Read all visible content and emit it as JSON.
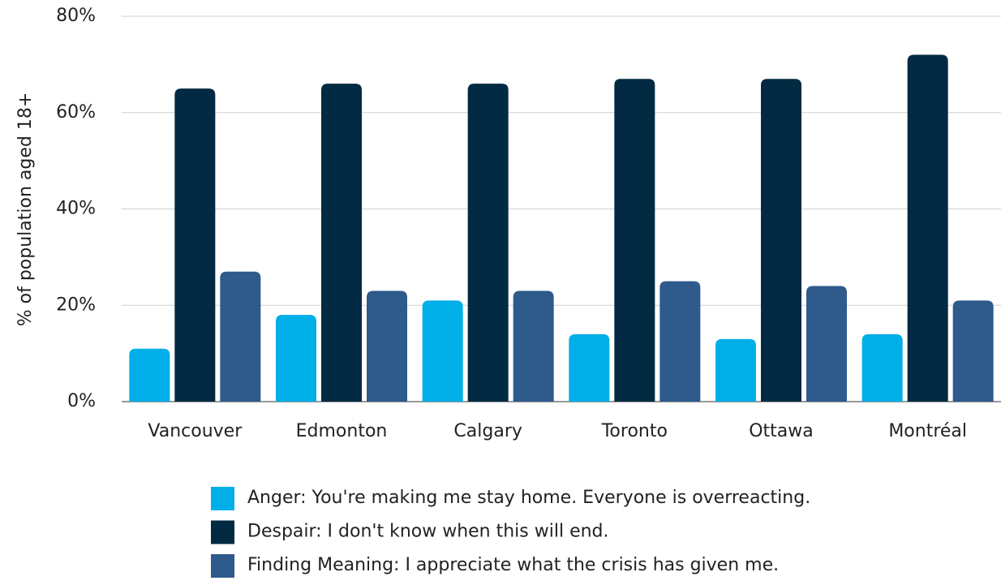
{
  "chart_data": {
    "type": "bar",
    "y_label": "% of population aged 18+",
    "categories": [
      "Vancouver",
      "Edmonton",
      "Calgary",
      "Toronto",
      "Ottawa",
      "Montréal"
    ],
    "series": [
      {
        "name": "Anger: You're making me stay home. Everyone is overreacting.",
        "color": "#00aee8",
        "values": [
          11,
          18,
          21,
          14,
          13,
          14
        ]
      },
      {
        "name": "Despair: I don't know when this will end.",
        "color": "#022a42",
        "values": [
          65,
          66,
          66,
          67,
          67,
          72
        ]
      },
      {
        "name": "Finding Meaning: I appreciate what the crisis has given me.",
        "color": "#2e5a8c",
        "values": [
          27,
          23,
          23,
          25,
          24,
          21
        ]
      }
    ],
    "ylim": [
      0,
      80
    ],
    "yticks": [
      {
        "value": 0,
        "label": "0%"
      },
      {
        "value": 20,
        "label": "20%"
      },
      {
        "value": 40,
        "label": "40%"
      },
      {
        "value": 60,
        "label": "60%"
      },
      {
        "value": 80,
        "label": "80%"
      }
    ],
    "grid": true
  }
}
